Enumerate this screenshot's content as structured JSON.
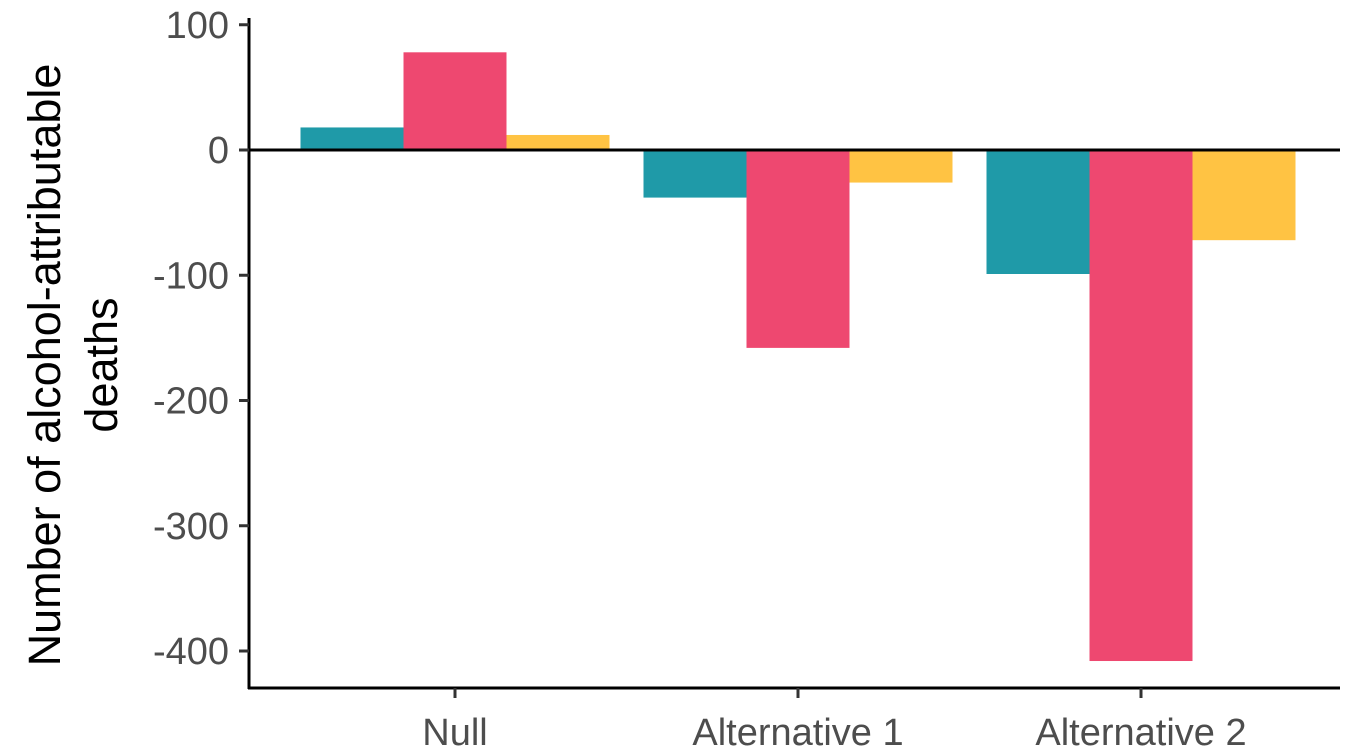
{
  "chart_data": {
    "type": "bar",
    "title": "",
    "xlabel": "",
    "ylabel_lines": [
      "Number of alcohol-attributable",
      "deaths"
    ],
    "categories": [
      "Null",
      "Alternative 1",
      "Alternative 2"
    ],
    "series": [
      {
        "color": "#1f9aa8",
        "values": [
          18,
          -38,
          -99
        ]
      },
      {
        "color": "#ee4870",
        "values": [
          78,
          -158,
          -408
        ]
      },
      {
        "color": "#ffc343",
        "values": [
          12,
          -26,
          -72
        ]
      }
    ],
    "yticks": [
      100,
      0,
      -100,
      -200,
      -300,
      -400
    ],
    "ylim": [
      -430,
      100
    ],
    "grid": false,
    "legend": "none",
    "zero_line": true
  }
}
